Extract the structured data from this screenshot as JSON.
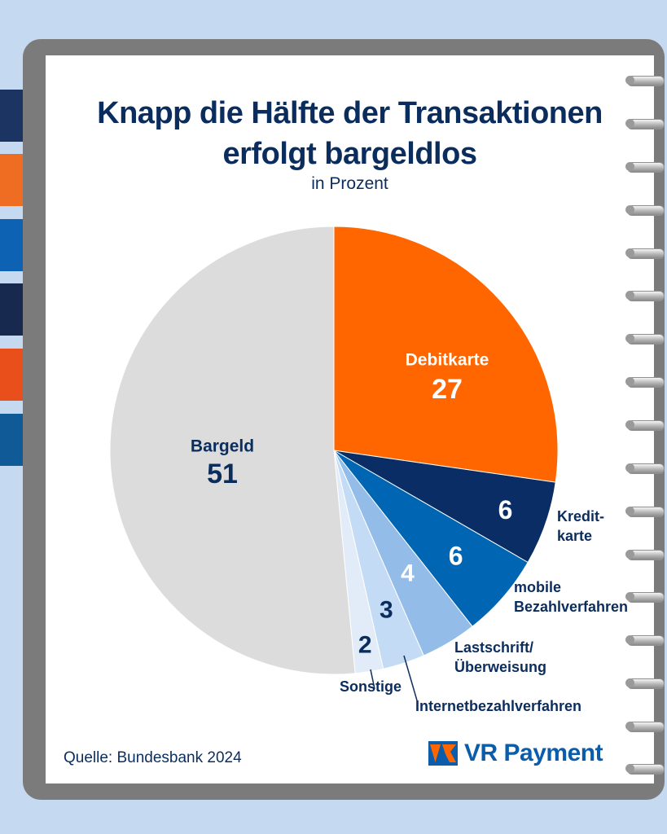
{
  "title_line1": "Knapp die Hälfte der Transaktionen",
  "title_line2": "erfolgt bargeldlos",
  "subtitle": "in Prozent",
  "source": "Quelle: Bundesbank 2024",
  "brand": "VR Payment",
  "colors": {
    "background": "#c5d9f1",
    "title": "#0b2d5e",
    "tabs": [
      "#1b3462",
      "#ee6d22",
      "#0e62b4",
      "#17294e",
      "#e84f1b",
      "#115a98"
    ]
  },
  "chart_data": {
    "type": "pie",
    "title": "Knapp die Hälfte der Transaktionen erfolgt bargeldlos",
    "unit": "in Prozent",
    "start": "12 o'clock",
    "direction": "clockwise",
    "slices": [
      {
        "key": "debitkarte",
        "label": "Debitkarte",
        "value": 27,
        "color": "#ff6600",
        "label_position": "inside"
      },
      {
        "key": "kreditkarte",
        "label": "Kredit-\nkarte",
        "value": 6,
        "color": "#0a2d66",
        "label_position": "outside"
      },
      {
        "key": "mobile",
        "label": "mobile\nBezahlverfahren",
        "value": 6,
        "color": "#0066b3",
        "label_position": "outside"
      },
      {
        "key": "lastschrift",
        "label": "Lastschrift/\nÜberweisung",
        "value": 4,
        "color": "#93bde8",
        "label_position": "outside"
      },
      {
        "key": "internet",
        "label": "Internetbezahlverfahren",
        "value": 3,
        "color": "#c3dbf4",
        "label_position": "outside"
      },
      {
        "key": "sonstige",
        "label": "Sonstige",
        "value": 2,
        "color": "#e1ecf8",
        "label_position": "outside"
      },
      {
        "key": "bargeld",
        "label": "Bargeld",
        "value": 51,
        "color": "#dcdcdc",
        "label_position": "inside"
      }
    ]
  }
}
